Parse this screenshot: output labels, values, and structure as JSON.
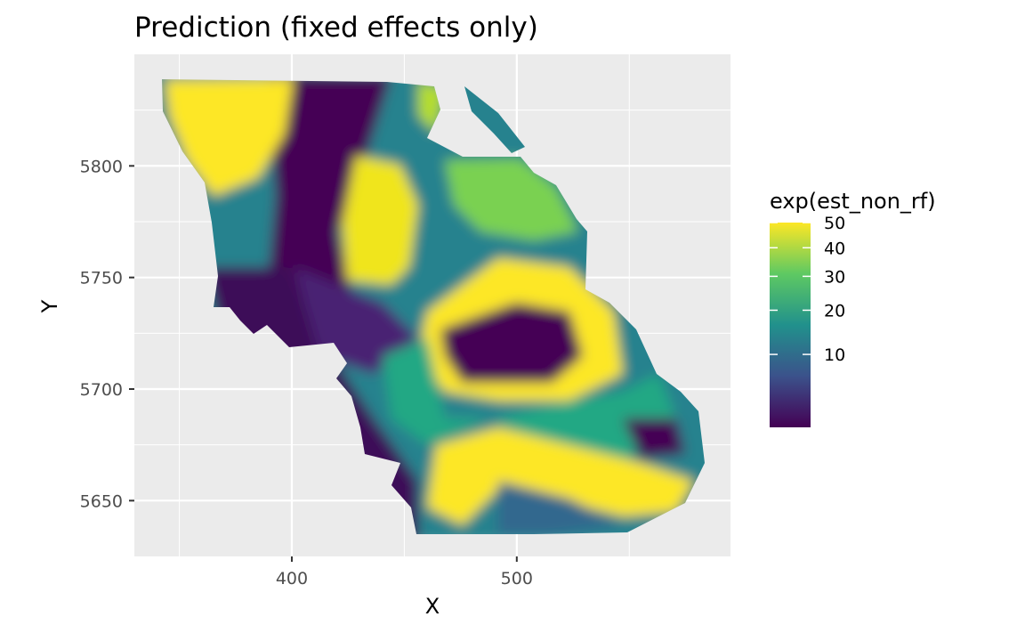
{
  "chart_data": {
    "type": "heatmap",
    "title": "Prediction (fixed effects only)",
    "xlabel": "X",
    "ylabel": "Y",
    "xlim": [
      330,
      595
    ],
    "ylim": [
      5625,
      5850
    ],
    "x_ticks": [
      400,
      500
    ],
    "y_ticks": [
      5650,
      5700,
      5750,
      5800
    ],
    "x_tick_labels": [
      "400",
      "500"
    ],
    "y_tick_labels": [
      "5650",
      "5700",
      "5750",
      "5800"
    ],
    "grid": true,
    "legend": {
      "title": "exp(est_non_rf)",
      "placement": "right",
      "range": [
        1,
        50
      ],
      "breaks": [
        10,
        20,
        30,
        40,
        50
      ],
      "break_labels": [
        "10",
        "20",
        "30",
        "40",
        "50"
      ],
      "colormap": "viridis",
      "colors": [
        "#440154",
        "#3b528b",
        "#21918c",
        "#5ec962",
        "#fde725"
      ]
    },
    "zones": [
      {
        "region": "north-west patch",
        "x": [
          345,
          395
        ],
        "y": [
          5790,
          5838
        ],
        "level": "high"
      },
      {
        "region": "central-north patch",
        "x": [
          405,
          445
        ],
        "y": [
          5740,
          5800
        ],
        "level": "high"
      },
      {
        "region": "north-east shelf",
        "x": [
          470,
          525
        ],
        "y": [
          5770,
          5800
        ],
        "level": "medium"
      },
      {
        "region": "west channel",
        "x": [
          380,
          420
        ],
        "y": [
          5690,
          5840
        ],
        "level": "low"
      },
      {
        "region": "central basin",
        "x": [
          495,
          545
        ],
        "y": [
          5705,
          5730
        ],
        "level": "low"
      },
      {
        "region": "basin rim",
        "x": [
          470,
          565
        ],
        "y": [
          5690,
          5760
        ],
        "level": "high"
      },
      {
        "region": "east pocket",
        "x": [
          545,
          565
        ],
        "y": [
          5665,
          5680
        ],
        "level": "low"
      },
      {
        "region": "south-east band",
        "x": [
          470,
          580
        ],
        "y": [
          5640,
          5680
        ],
        "level": "high"
      },
      {
        "region": "south-west edge",
        "x": [
          410,
          470
        ],
        "y": [
          5640,
          5700
        ],
        "level": "low"
      }
    ]
  }
}
